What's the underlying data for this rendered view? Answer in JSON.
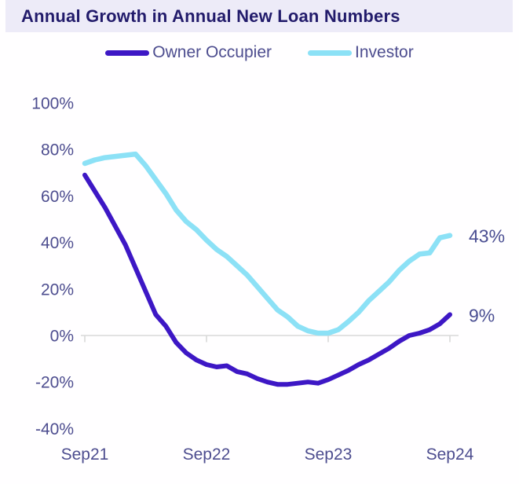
{
  "header": {
    "title": "Annual Growth in Annual New Loan Numbers"
  },
  "legend": [
    {
      "name": "Owner Occupier",
      "color": "#3d17c5"
    },
    {
      "name": "Investor",
      "color": "#8ce1f6"
    }
  ],
  "colors": {
    "title": "#221b6b",
    "band_background": "#edebf8",
    "axis_line": "#d9d9d9",
    "tick_text": "#4d4d8f",
    "value_label": "#4a4e92",
    "owner_occupier_line": "#3d17c5",
    "investor_line": "#8ce1f6"
  },
  "chart_data": {
    "type": "line",
    "title": "Annual Growth in Annual New Loan Numbers",
    "x_interval": "monthly",
    "x": [
      "Sep21",
      "Oct21",
      "Nov21",
      "Dec21",
      "Jan22",
      "Feb22",
      "Mar22",
      "Apr22",
      "May22",
      "Jun22",
      "Jul22",
      "Aug22",
      "Sep22",
      "Oct22",
      "Nov22",
      "Dec22",
      "Jan23",
      "Feb23",
      "Mar23",
      "Apr23",
      "May23",
      "Jun23",
      "Jul23",
      "Aug23",
      "Sep23",
      "Oct23",
      "Nov23",
      "Dec23",
      "Jan24",
      "Feb24",
      "Mar24",
      "Apr24",
      "May24",
      "Jun24",
      "Jul24",
      "Aug24",
      "Sep24"
    ],
    "x_tick_labels": [
      "Sep21",
      "Sep22",
      "Sep23",
      "Sep24"
    ],
    "x_tick_indices": [
      0,
      12,
      24,
      36
    ],
    "y_tick_labels": [
      "100%",
      "80%",
      "60%",
      "40%",
      "20%",
      "0%",
      "-20%",
      "-40%"
    ],
    "y_tick_values": [
      100,
      80,
      60,
      40,
      20,
      0,
      -20,
      -40
    ],
    "ylim": [
      -40,
      100
    ],
    "ylabel": "",
    "xlabel": "",
    "grid": false,
    "legend_position": "top",
    "series": [
      {
        "name": "Owner Occupier",
        "color": "#3d17c5",
        "end_label": "9%",
        "values": [
          69,
          62,
          55,
          47,
          39,
          29,
          19,
          9,
          4,
          -3,
          -7.5,
          -10.5,
          -12.5,
          -13.5,
          -13,
          -15.5,
          -16.5,
          -18.5,
          -20,
          -21,
          -21,
          -20.5,
          -20,
          -20.5,
          -19,
          -17,
          -15,
          -12.5,
          -10.5,
          -8,
          -5.5,
          -2.5,
          0,
          1,
          2.5,
          5,
          9
        ]
      },
      {
        "name": "Investor",
        "color": "#8ce1f6",
        "end_label": "43%",
        "values": [
          74,
          75.5,
          76.5,
          77,
          77.5,
          78,
          73,
          67,
          61,
          54,
          49,
          45.5,
          41,
          37,
          34,
          30,
          26,
          21,
          16,
          11,
          8,
          4,
          2,
          1,
          1,
          2.5,
          6,
          10,
          15,
          19,
          23,
          28,
          32,
          35,
          35.5,
          42,
          43
        ]
      }
    ]
  }
}
